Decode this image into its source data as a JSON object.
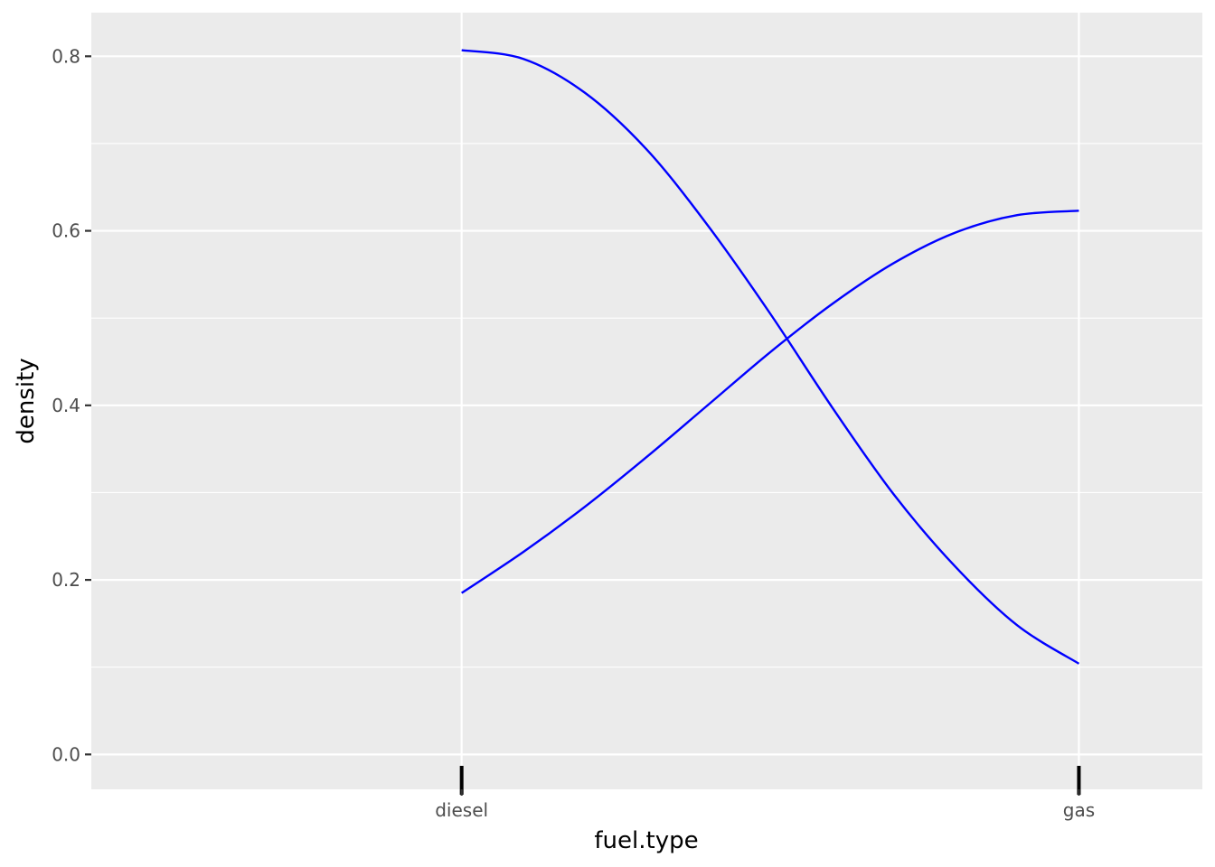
{
  "chart_data": {
    "type": "line",
    "title": "",
    "xlabel": "fuel.type",
    "ylabel": "density",
    "categories": [
      "diesel",
      "gas"
    ],
    "xlim": [
      -0.6,
      1.2
    ],
    "ylim": [
      -0.04,
      0.85
    ],
    "yticks": [
      0.0,
      0.2,
      0.4,
      0.6,
      0.8
    ],
    "ytick_labels": [
      "0.0",
      "0.2",
      "0.4",
      "0.6",
      "0.8"
    ],
    "grid": true,
    "line_color": "#0000ff",
    "panel_color": "#ebebeb",
    "series": [
      {
        "x": [
          0.0,
          0.1,
          0.2,
          0.3,
          0.4,
          0.5,
          0.6,
          0.7,
          0.8,
          0.9,
          1.0
        ],
        "values": [
          0.807,
          0.797,
          0.758,
          0.693,
          0.605,
          0.505,
          0.398,
          0.298,
          0.215,
          0.148,
          0.104
        ]
      },
      {
        "x": [
          0.0,
          0.1,
          0.2,
          0.3,
          0.4,
          0.5,
          0.6,
          0.7,
          0.8,
          0.9,
          1.0
        ],
        "values": [
          0.185,
          0.232,
          0.284,
          0.341,
          0.401,
          0.461,
          0.516,
          0.563,
          0.598,
          0.618,
          0.623
        ]
      }
    ],
    "rug": [
      0,
      1
    ]
  }
}
